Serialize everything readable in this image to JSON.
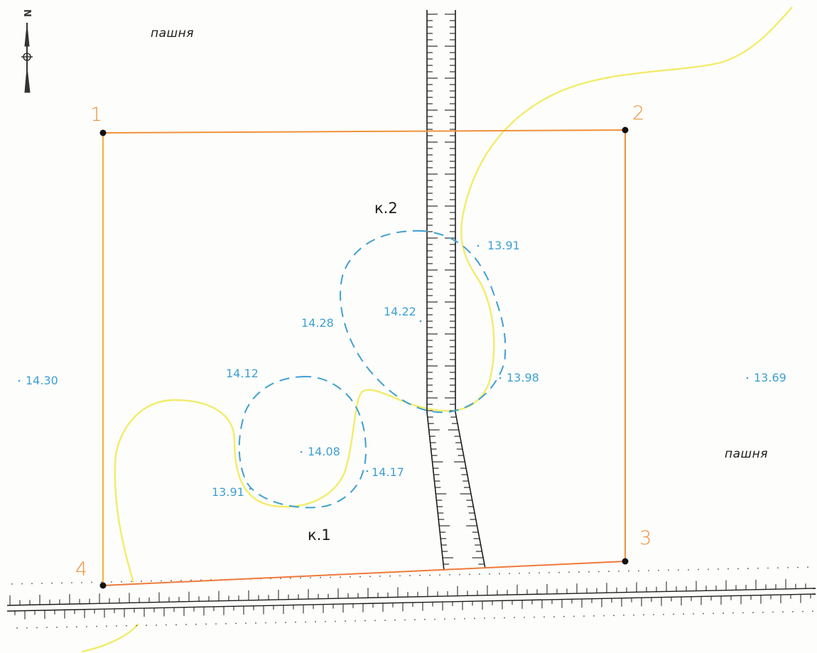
{
  "colors": {
    "boundary": "#f0913a",
    "corner_point": "#111111",
    "elevation": "#3ea0d2",
    "pit_contour": "#3ea0d2",
    "yellow_line": "#f2ec6a",
    "road": "#1c1c1c",
    "background": "#fdfdfb"
  },
  "north_arrow": {
    "letter": "N",
    "icon": "north-arrow-icon"
  },
  "landuse": [
    {
      "id": "top",
      "text": "пашня"
    },
    {
      "id": "right",
      "text": "пашня"
    }
  ],
  "corners": [
    {
      "id": 1,
      "label": "1"
    },
    {
      "id": 2,
      "label": "2"
    },
    {
      "id": 3,
      "label": "3"
    },
    {
      "id": 4,
      "label": "4"
    }
  ],
  "pits": [
    {
      "id": "k2",
      "label": "к.2"
    },
    {
      "id": "k1",
      "label": "к.1"
    }
  ],
  "elevations": [
    {
      "id": "e1",
      "text": "14.30"
    },
    {
      "id": "e2",
      "text": "13.69"
    },
    {
      "id": "e3",
      "text": "13.91"
    },
    {
      "id": "e4",
      "text": "14.28"
    },
    {
      "id": "e5",
      "text": "14.22"
    },
    {
      "id": "e6",
      "text": "13.98"
    },
    {
      "id": "e7",
      "text": "14.12"
    },
    {
      "id": "e8",
      "text": "14.08"
    },
    {
      "id": "e9",
      "text": "14.17"
    },
    {
      "id": "e10",
      "text": "13.91"
    }
  ]
}
